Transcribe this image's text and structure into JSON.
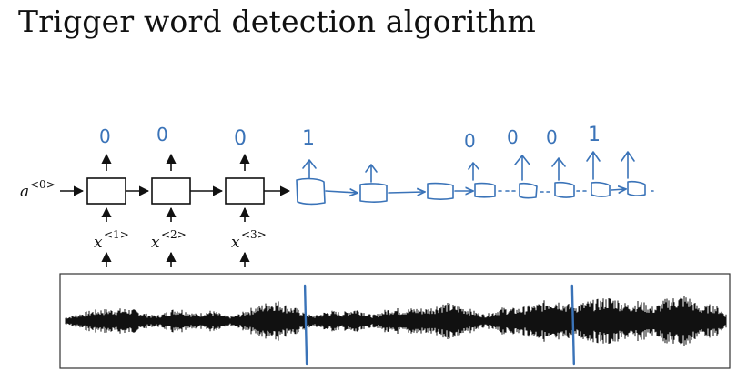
{
  "title": "Trigger word detection algorithm",
  "initial_activation": {
    "base": "a",
    "superscript": "<0>"
  },
  "inputs": [
    {
      "base": "x",
      "superscript": "<1>"
    },
    {
      "base": "x",
      "superscript": "<2>"
    },
    {
      "base": "x",
      "superscript": "<3>"
    }
  ],
  "printed_outputs": [
    "0",
    "0",
    "0"
  ],
  "handwritten_outputs": [
    "1",
    "0",
    "0",
    "0",
    "1"
  ],
  "colors": {
    "printed": "#111111",
    "handwritten": "#3a73b8",
    "waveform": "#111111",
    "marker": "#3a73b8"
  },
  "waveform": {
    "trigger_markers_fraction": [
      0.367,
      0.766
    ]
  }
}
